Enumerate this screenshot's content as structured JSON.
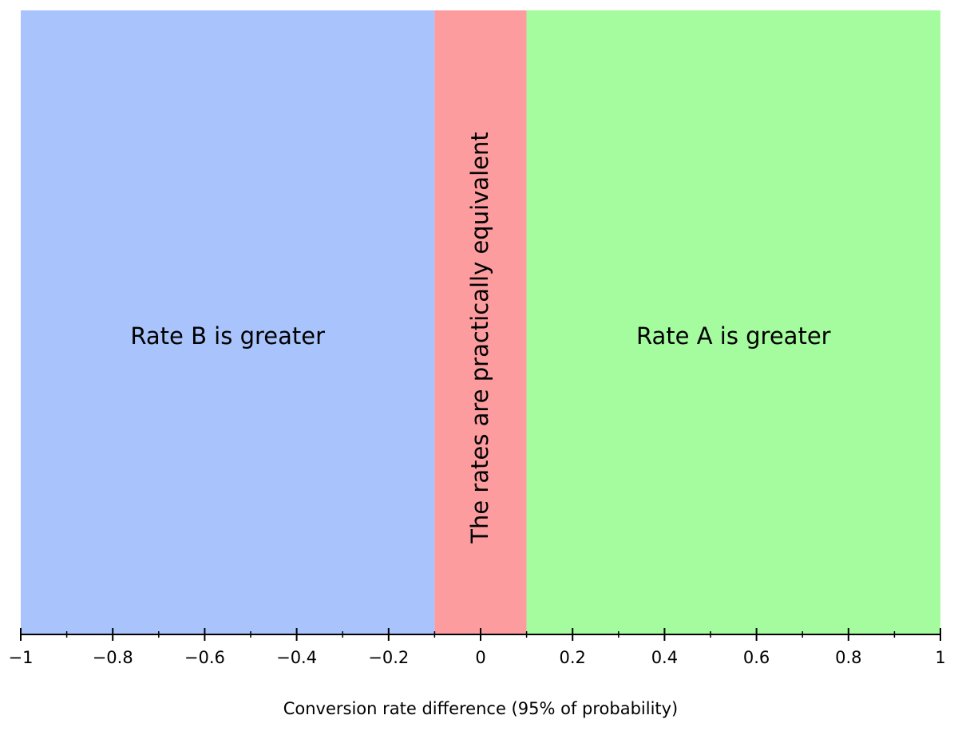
{
  "chart_data": {
    "type": "bar",
    "xlabel": "Conversion rate difference (95% of probability)",
    "ylabel": "",
    "xlim": [
      -1,
      1
    ],
    "grid": false,
    "legend": "none",
    "regions": [
      {
        "label": "Rate B is greater",
        "from": -1,
        "to": -0.1,
        "color": "#a9c4fc",
        "label_orientation": "horizontal"
      },
      {
        "label": "The rates are practically equivalent",
        "from": -0.1,
        "to": 0.1,
        "color": "#fd9c9f",
        "label_orientation": "vertical"
      },
      {
        "label": "Rate A is greater",
        "from": 0.1,
        "to": 1,
        "color": "#a4fc9f",
        "label_orientation": "horizontal"
      }
    ],
    "x_ticks": [
      {
        "value": -1,
        "label": "−1"
      },
      {
        "value": -0.8,
        "label": "−0.8"
      },
      {
        "value": -0.6,
        "label": "−0.6"
      },
      {
        "value": -0.4,
        "label": "−0.4"
      },
      {
        "value": -0.2,
        "label": "−0.2"
      },
      {
        "value": 0,
        "label": "0"
      },
      {
        "value": 0.2,
        "label": "0.2"
      },
      {
        "value": 0.4,
        "label": "0.4"
      },
      {
        "value": 0.6,
        "label": "0.6"
      },
      {
        "value": 0.8,
        "label": "0.8"
      },
      {
        "value": 1,
        "label": "1"
      }
    ],
    "minor_tick_step": 0.1
  }
}
